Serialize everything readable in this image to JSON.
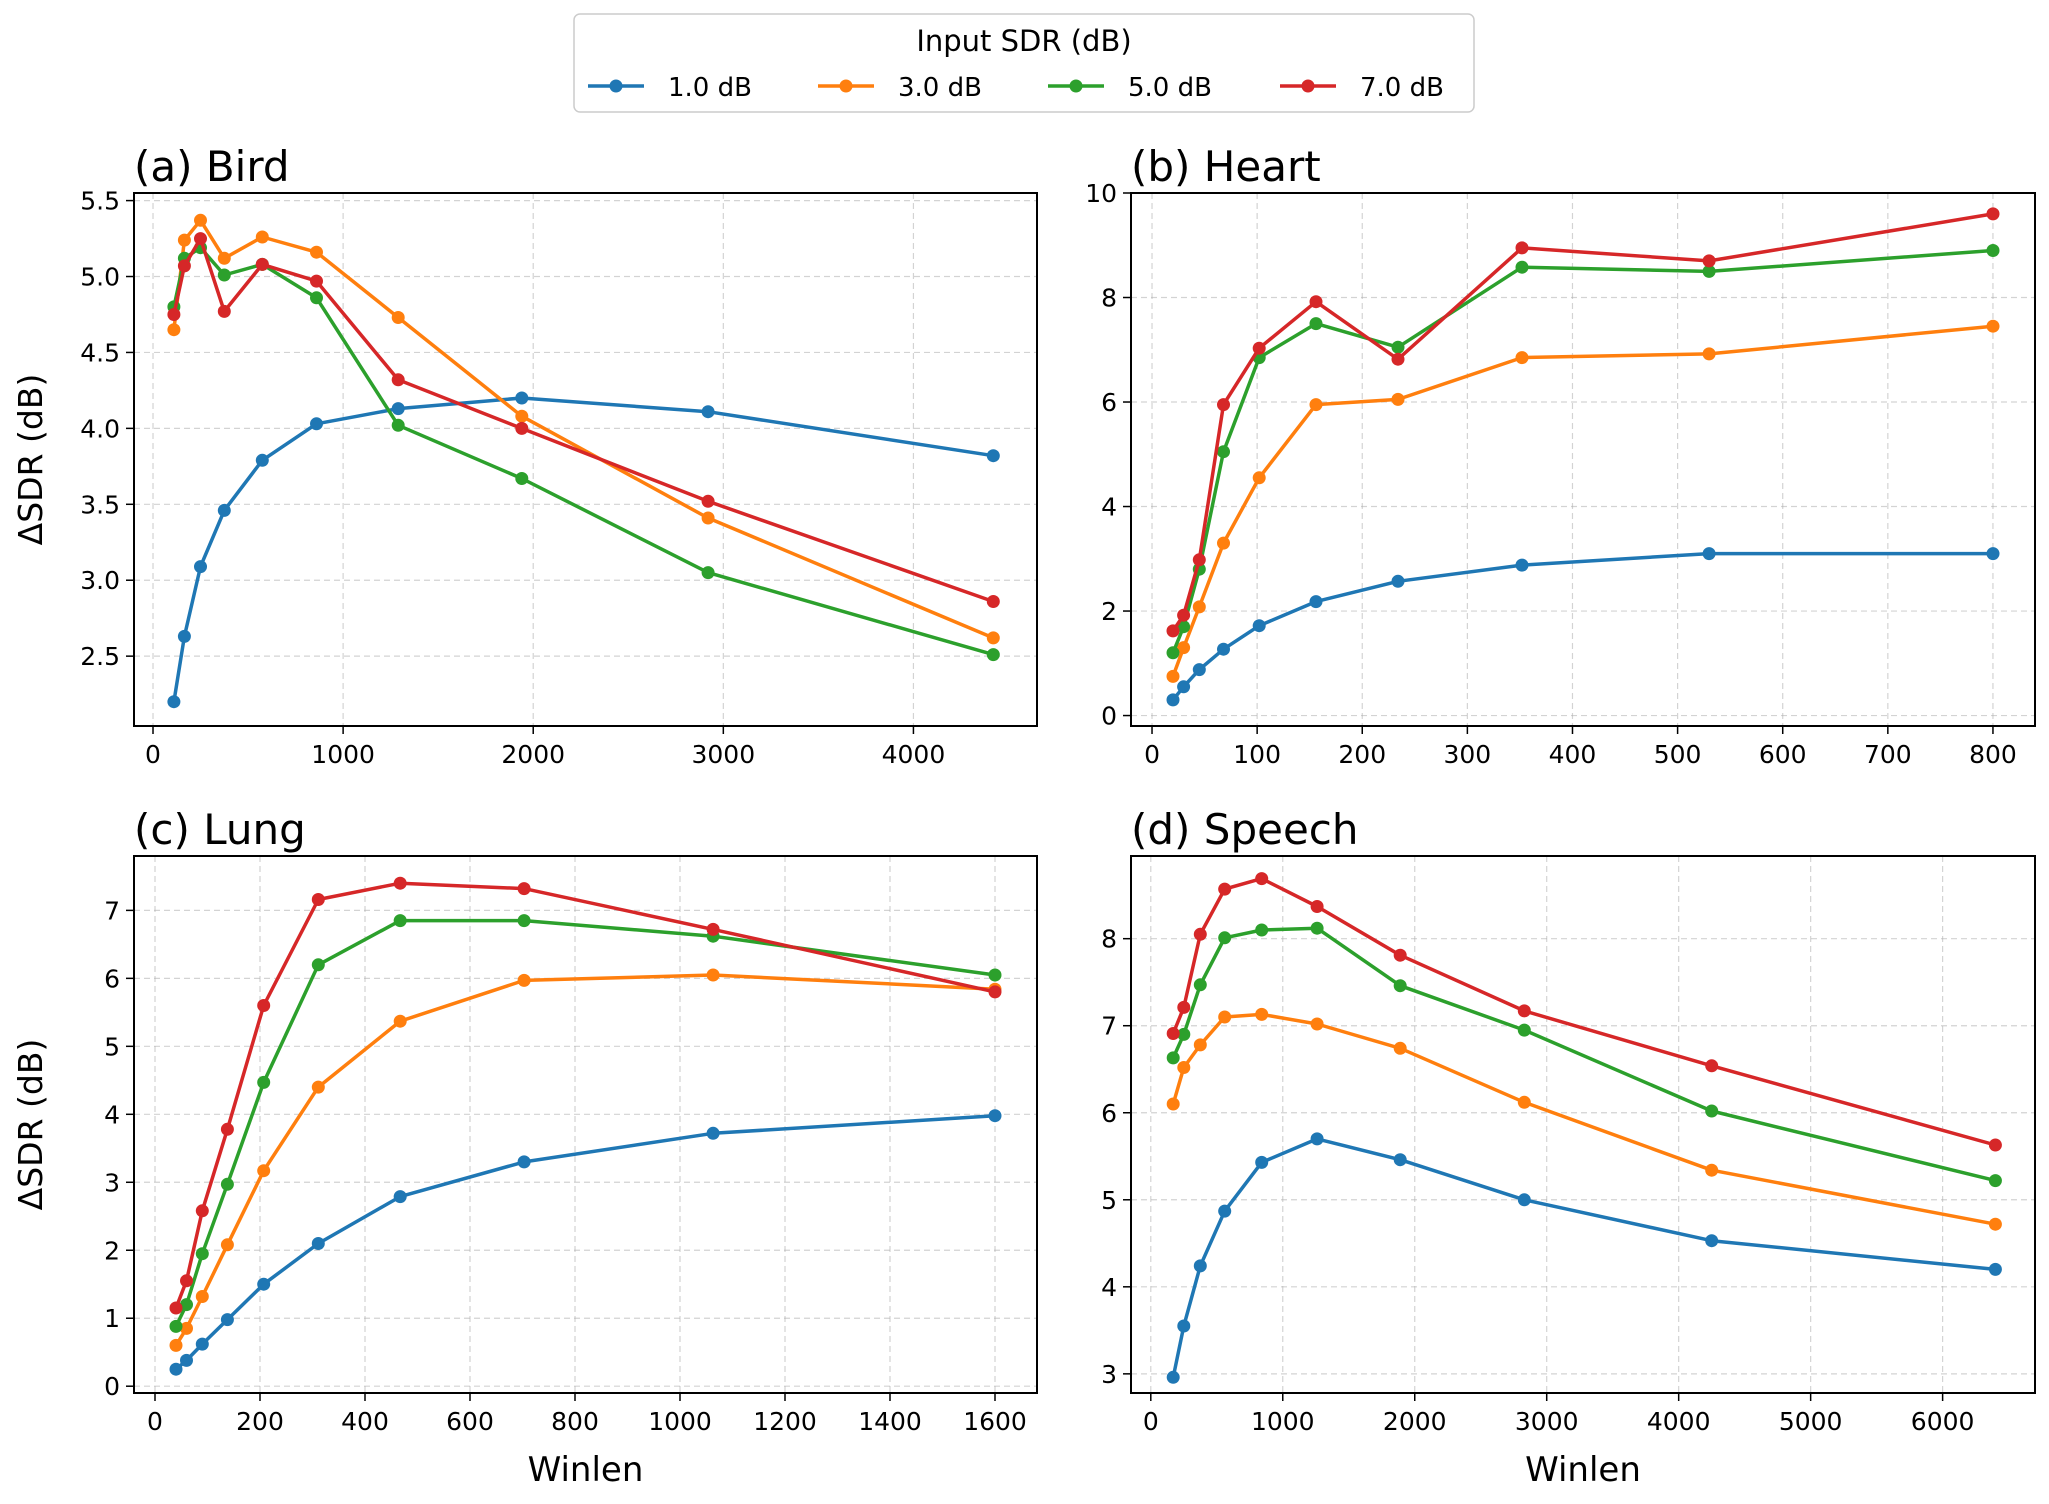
{
  "legend": {
    "title": "Input SDR (dB)",
    "placement": "top-center"
  },
  "colors": {
    "1.0 dB": "#1f77b4",
    "3.0 dB": "#ff7f0e",
    "5.0 dB": "#2ca02c",
    "7.0 dB": "#d62728"
  },
  "chart_data": [
    {
      "type": "line",
      "title": "(a) Bird",
      "xlabel": "",
      "ylabel": "ΔSDR (dB)",
      "xlim": [
        -100,
        4650
      ],
      "ylim": [
        2.04,
        5.55
      ],
      "xticks": [
        0,
        1000,
        2000,
        3000,
        4000
      ],
      "yticks": [
        2.5,
        3.0,
        3.5,
        4.0,
        4.5,
        5.0,
        5.5
      ],
      "ytick_labels": [
        "2.5",
        "3.0",
        "3.5",
        "4.0",
        "4.5",
        "5.0",
        "5.5"
      ],
      "grid": true,
      "x": [
        110,
        165,
        250,
        375,
        575,
        860,
        1290,
        1940,
        2920,
        4420
      ],
      "series": [
        {
          "name": "1.0 dB",
          "values": [
            2.2,
            2.63,
            3.09,
            3.46,
            3.79,
            4.03,
            4.13,
            4.2,
            4.11,
            3.82
          ]
        },
        {
          "name": "3.0 dB",
          "values": [
            4.65,
            5.24,
            5.37,
            5.12,
            5.26,
            5.16,
            4.73,
            4.08,
            3.41,
            2.62
          ]
        },
        {
          "name": "5.0 dB",
          "values": [
            4.8,
            5.12,
            5.19,
            5.01,
            5.08,
            4.86,
            4.02,
            3.67,
            3.05,
            2.51
          ]
        },
        {
          "name": "7.0 dB",
          "values": [
            4.75,
            5.07,
            5.25,
            4.77,
            5.08,
            4.97,
            4.32,
            4.0,
            3.52,
            2.86
          ]
        }
      ]
    },
    {
      "type": "line",
      "title": "(b) Heart",
      "xlabel": "",
      "ylabel": "",
      "xlim": [
        -20,
        840
      ],
      "ylim": [
        -0.2,
        10.0
      ],
      "xticks": [
        0,
        100,
        200,
        300,
        400,
        500,
        600,
        700,
        800
      ],
      "yticks": [
        0,
        2,
        4,
        6,
        8,
        10
      ],
      "ytick_labels": [
        "0",
        "2",
        "4",
        "6",
        "8",
        "10"
      ],
      "grid": true,
      "x": [
        20,
        30,
        45,
        68,
        102,
        156,
        234,
        352,
        530,
        800
      ],
      "series": [
        {
          "name": "1.0 dB",
          "values": [
            0.3,
            0.55,
            0.88,
            1.27,
            1.72,
            2.18,
            2.57,
            2.88,
            3.1,
            3.1
          ]
        },
        {
          "name": "3.0 dB",
          "values": [
            0.75,
            1.3,
            2.08,
            3.3,
            4.55,
            5.95,
            6.05,
            6.85,
            6.92,
            7.45
          ]
        },
        {
          "name": "5.0 dB",
          "values": [
            1.2,
            1.7,
            2.8,
            5.05,
            6.85,
            7.5,
            7.05,
            8.58,
            8.5,
            8.9
          ]
        },
        {
          "name": "7.0 dB",
          "values": [
            1.62,
            1.92,
            2.98,
            5.95,
            7.03,
            7.92,
            6.82,
            8.95,
            8.7,
            9.6
          ]
        }
      ]
    },
    {
      "type": "line",
      "title": "(c) Lung",
      "xlabel": "Winlen",
      "ylabel": "ΔSDR (dB)",
      "xlim": [
        -40,
        1680
      ],
      "ylim": [
        -0.1,
        7.8
      ],
      "xticks": [
        0,
        200,
        400,
        600,
        800,
        1000,
        1200,
        1400,
        1600
      ],
      "yticks": [
        0,
        1,
        2,
        3,
        4,
        5,
        6,
        7
      ],
      "ytick_labels": [
        "0",
        "1",
        "2",
        "3",
        "4",
        "5",
        "6",
        "7"
      ],
      "grid": true,
      "x": [
        40,
        60,
        90,
        138,
        207,
        311,
        467,
        703,
        1063,
        1600
      ],
      "series": [
        {
          "name": "1.0 dB",
          "values": [
            0.25,
            0.38,
            0.62,
            0.98,
            1.5,
            2.1,
            2.79,
            3.3,
            3.72,
            3.98
          ]
        },
        {
          "name": "3.0 dB",
          "values": [
            0.6,
            0.85,
            1.32,
            2.08,
            3.17,
            4.4,
            5.37,
            5.97,
            6.05,
            5.84
          ]
        },
        {
          "name": "5.0 dB",
          "values": [
            0.88,
            1.2,
            1.95,
            2.97,
            4.47,
            6.2,
            6.85,
            6.85,
            6.62,
            6.05
          ]
        },
        {
          "name": "7.0 dB",
          "values": [
            1.15,
            1.55,
            2.58,
            3.78,
            5.6,
            7.16,
            7.4,
            7.32,
            6.72,
            5.8
          ]
        }
      ]
    },
    {
      "type": "line",
      "title": "(d) Speech",
      "xlabel": "Winlen",
      "ylabel": "",
      "xlim": [
        -150,
        6700
      ],
      "ylim": [
        2.78,
        8.95
      ],
      "xticks": [
        0,
        1000,
        2000,
        3000,
        4000,
        5000,
        6000
      ],
      "yticks": [
        3,
        4,
        5,
        6,
        7,
        8
      ],
      "ytick_labels": [
        "3",
        "4",
        "5",
        "6",
        "7",
        "8"
      ],
      "grid": true,
      "x": [
        170,
        250,
        375,
        560,
        840,
        1260,
        1890,
        2830,
        4250,
        6400
      ],
      "series": [
        {
          "name": "1.0 dB",
          "values": [
            2.96,
            3.55,
            4.24,
            4.87,
            5.43,
            5.7,
            5.46,
            5.0,
            4.53,
            4.2
          ]
        },
        {
          "name": "3.0 dB",
          "values": [
            6.1,
            6.52,
            6.78,
            7.1,
            7.13,
            7.02,
            6.74,
            6.12,
            5.34,
            4.72
          ]
        },
        {
          "name": "5.0 dB",
          "values": [
            6.63,
            6.9,
            7.47,
            8.01,
            8.1,
            8.12,
            7.46,
            6.95,
            6.02,
            5.22
          ]
        },
        {
          "name": "7.0 dB",
          "values": [
            6.91,
            7.21,
            8.05,
            8.57,
            8.69,
            8.37,
            7.81,
            7.17,
            6.54,
            5.63
          ]
        }
      ]
    }
  ]
}
